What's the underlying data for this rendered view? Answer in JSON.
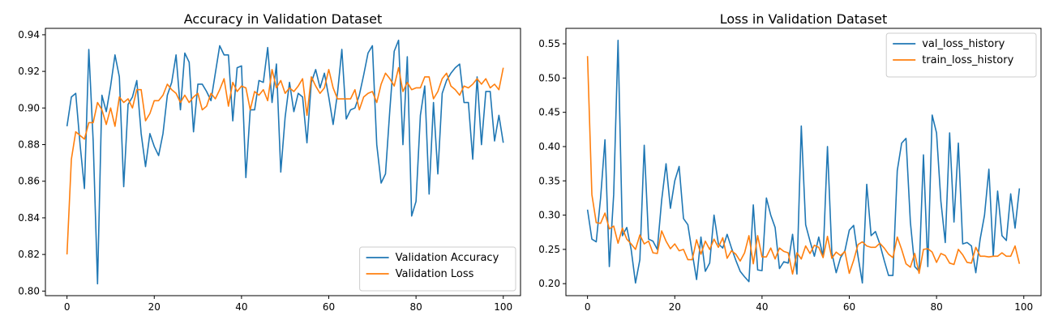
{
  "chart_data": [
    {
      "type": "line",
      "title": "Accuracy in Validation Dataset",
      "xlabel": "",
      "ylabel": "",
      "xlim": [
        -4.95,
        103.95
      ],
      "ylim": [
        0.7975,
        0.9435
      ],
      "xticks": [
        0,
        20,
        40,
        60,
        80,
        100
      ],
      "yticks": [
        0.8,
        0.82,
        0.84,
        0.86,
        0.88,
        0.9,
        0.92,
        0.94
      ],
      "ytick_labels": [
        "0.80",
        "0.82",
        "0.84",
        "0.86",
        "0.88",
        "0.90",
        "0.92",
        "0.94"
      ],
      "legend_position": "lower-right",
      "grid": false,
      "series": [
        {
          "name": "Validation Accuracy",
          "color": "#1f77b4",
          "values": [
            0.89,
            0.906,
            0.908,
            0.88,
            0.856,
            0.932,
            0.882,
            0.804,
            0.907,
            0.898,
            0.912,
            0.929,
            0.917,
            0.857,
            0.902,
            0.906,
            0.915,
            0.886,
            0.868,
            0.886,
            0.879,
            0.874,
            0.886,
            0.907,
            0.914,
            0.929,
            0.899,
            0.93,
            0.925,
            0.887,
            0.913,
            0.913,
            0.909,
            0.904,
            0.919,
            0.934,
            0.929,
            0.929,
            0.893,
            0.922,
            0.923,
            0.862,
            0.899,
            0.899,
            0.915,
            0.914,
            0.933,
            0.903,
            0.924,
            0.865,
            0.895,
            0.914,
            0.898,
            0.908,
            0.906,
            0.881,
            0.914,
            0.921,
            0.911,
            0.919,
            0.906,
            0.891,
            0.908,
            0.932,
            0.894,
            0.899,
            0.9,
            0.907,
            0.918,
            0.93,
            0.934,
            0.88,
            0.859,
            0.864,
            0.899,
            0.931,
            0.937,
            0.88,
            0.928,
            0.841,
            0.849,
            0.896,
            0.912,
            0.853,
            0.903,
            0.864,
            0.908,
            0.915,
            0.919,
            0.922,
            0.924,
            0.903,
            0.903,
            0.872,
            0.917,
            0.88,
            0.909,
            0.909,
            0.882,
            0.896,
            0.881
          ]
        },
        {
          "name": "Validation Loss",
          "color": "#ff7f0e",
          "values": [
            0.82,
            0.872,
            0.887,
            0.885,
            0.883,
            0.892,
            0.892,
            0.903,
            0.899,
            0.891,
            0.9,
            0.89,
            0.906,
            0.903,
            0.905,
            0.9,
            0.91,
            0.91,
            0.893,
            0.897,
            0.904,
            0.904,
            0.907,
            0.913,
            0.91,
            0.908,
            0.903,
            0.907,
            0.903,
            0.906,
            0.908,
            0.899,
            0.901,
            0.908,
            0.905,
            0.91,
            0.916,
            0.901,
            0.914,
            0.909,
            0.912,
            0.911,
            0.899,
            0.909,
            0.907,
            0.91,
            0.904,
            0.921,
            0.911,
            0.915,
            0.908,
            0.911,
            0.909,
            0.912,
            0.916,
            0.896,
            0.917,
            0.912,
            0.908,
            0.911,
            0.921,
            0.911,
            0.905,
            0.905,
            0.905,
            0.905,
            0.91,
            0.899,
            0.906,
            0.908,
            0.909,
            0.903,
            0.913,
            0.919,
            0.916,
            0.912,
            0.922,
            0.909,
            0.914,
            0.91,
            0.911,
            0.911,
            0.917,
            0.917,
            0.905,
            0.909,
            0.916,
            0.919,
            0.912,
            0.91,
            0.907,
            0.912,
            0.911,
            0.913,
            0.916,
            0.913,
            0.916,
            0.911,
            0.913,
            0.91,
            0.922
          ]
        }
      ]
    },
    {
      "type": "line",
      "title": "Loss in Validation Dataset",
      "xlabel": "",
      "ylabel": "",
      "xlim": [
        -4.95,
        103.95
      ],
      "ylim": [
        0.1825,
        0.5725
      ],
      "xticks": [
        0,
        20,
        40,
        60,
        80,
        100
      ],
      "yticks": [
        0.2,
        0.25,
        0.3,
        0.35,
        0.4,
        0.45,
        0.5,
        0.55
      ],
      "ytick_labels": [
        "0.20",
        "0.25",
        "0.30",
        "0.35",
        "0.40",
        "0.45",
        "0.50",
        "0.55"
      ],
      "legend_position": "upper-right",
      "grid": false,
      "series": [
        {
          "name": "val_loss_history",
          "color": "#1f77b4",
          "values": [
            0.308,
            0.265,
            0.261,
            0.325,
            0.41,
            0.225,
            0.33,
            0.555,
            0.27,
            0.282,
            0.25,
            0.201,
            0.235,
            0.402,
            0.265,
            0.262,
            0.25,
            0.322,
            0.375,
            0.31,
            0.35,
            0.371,
            0.295,
            0.286,
            0.245,
            0.206,
            0.268,
            0.218,
            0.23,
            0.3,
            0.258,
            0.252,
            0.272,
            0.252,
            0.234,
            0.218,
            0.21,
            0.203,
            0.315,
            0.22,
            0.219,
            0.325,
            0.3,
            0.282,
            0.222,
            0.232,
            0.23,
            0.272,
            0.214,
            0.43,
            0.286,
            0.262,
            0.24,
            0.268,
            0.239,
            0.4,
            0.245,
            0.216,
            0.238,
            0.248,
            0.278,
            0.285,
            0.24,
            0.201,
            0.345,
            0.27,
            0.276,
            0.258,
            0.234,
            0.212,
            0.212,
            0.365,
            0.405,
            0.412,
            0.29,
            0.225,
            0.218,
            0.388,
            0.225,
            0.446,
            0.42,
            0.32,
            0.26,
            0.42,
            0.29,
            0.405,
            0.258,
            0.26,
            0.255,
            0.216,
            0.265,
            0.3,
            0.367,
            0.24,
            0.335,
            0.27,
            0.263,
            0.331,
            0.281,
            0.339
          ]
        },
        {
          "name": "train_loss_history",
          "color": "#ff7f0e",
          "values": [
            0.532,
            0.33,
            0.289,
            0.288,
            0.303,
            0.28,
            0.284,
            0.259,
            0.281,
            0.265,
            0.258,
            0.25,
            0.271,
            0.258,
            0.262,
            0.245,
            0.244,
            0.277,
            0.262,
            0.251,
            0.258,
            0.248,
            0.25,
            0.235,
            0.235,
            0.264,
            0.243,
            0.262,
            0.25,
            0.265,
            0.253,
            0.267,
            0.237,
            0.248,
            0.243,
            0.233,
            0.245,
            0.27,
            0.229,
            0.27,
            0.239,
            0.239,
            0.252,
            0.236,
            0.252,
            0.247,
            0.245,
            0.214,
            0.245,
            0.236,
            0.255,
            0.244,
            0.256,
            0.253,
            0.238,
            0.269,
            0.237,
            0.246,
            0.241,
            0.247,
            0.215,
            0.234,
            0.257,
            0.261,
            0.255,
            0.253,
            0.253,
            0.259,
            0.252,
            0.243,
            0.238,
            0.268,
            0.25,
            0.229,
            0.224,
            0.244,
            0.215,
            0.25,
            0.251,
            0.246,
            0.231,
            0.244,
            0.241,
            0.23,
            0.228,
            0.25,
            0.242,
            0.231,
            0.23,
            0.253,
            0.24,
            0.24,
            0.239,
            0.24,
            0.24,
            0.245,
            0.24,
            0.24,
            0.255,
            0.229
          ]
        }
      ]
    }
  ]
}
